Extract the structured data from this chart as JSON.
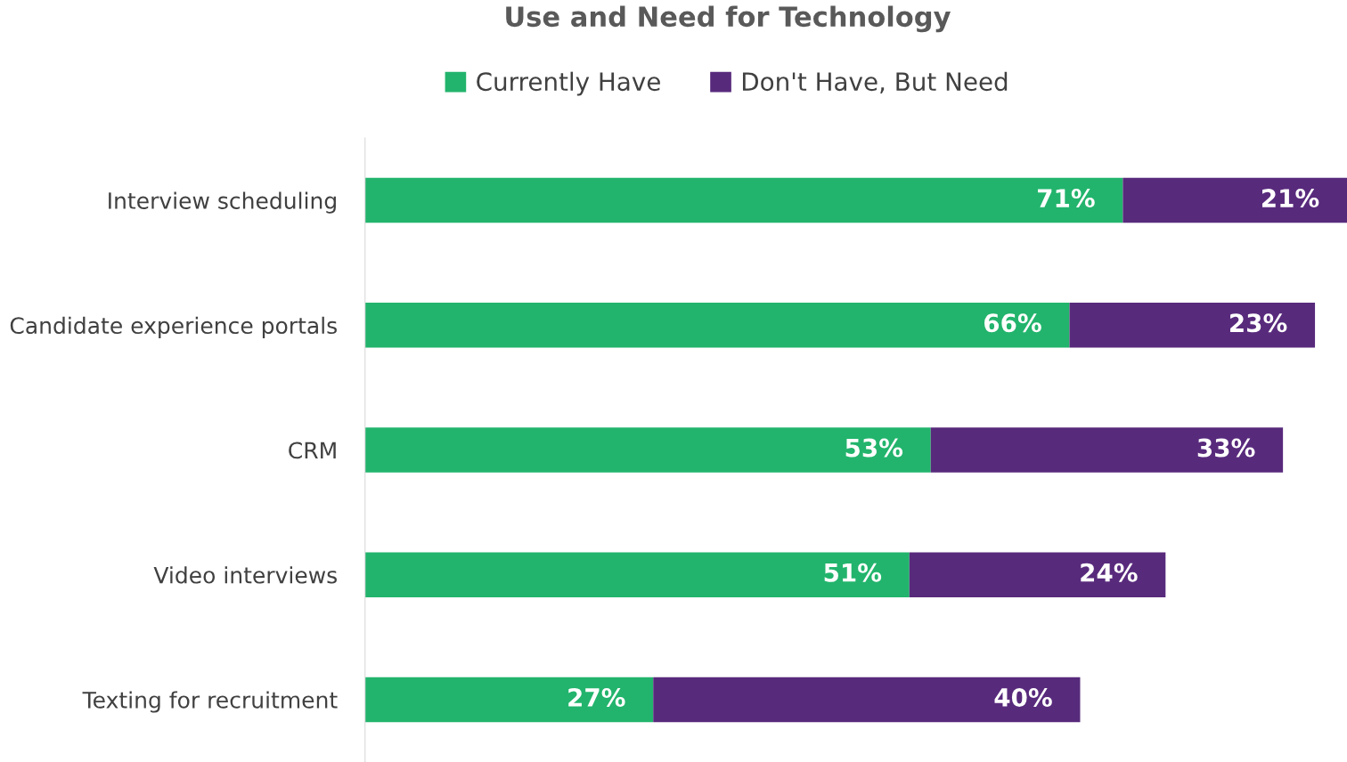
{
  "chart_data": {
    "type": "bar",
    "orientation": "horizontal",
    "stacked": true,
    "title": "Use and Need for Technology",
    "categories": [
      "Interview scheduling",
      "Candidate experience portals",
      "CRM",
      "Video interviews",
      "Texting for recruitment"
    ],
    "series": [
      {
        "name": "Currently Have",
        "color": "#22b46c",
        "values": [
          71,
          66,
          53,
          51,
          27
        ],
        "value_labels": [
          "71%",
          "66%",
          "53%",
          "51%",
          "27%"
        ]
      },
      {
        "name": "Don't Have, But Need",
        "color": "#582a7c",
        "values": [
          21,
          23,
          33,
          24,
          40
        ],
        "value_labels": [
          "21%",
          "23%",
          "33%",
          "24%",
          "40%"
        ]
      }
    ],
    "xlim": [
      0,
      92
    ],
    "tick_labels": "y",
    "grid": false,
    "legend": "top"
  }
}
